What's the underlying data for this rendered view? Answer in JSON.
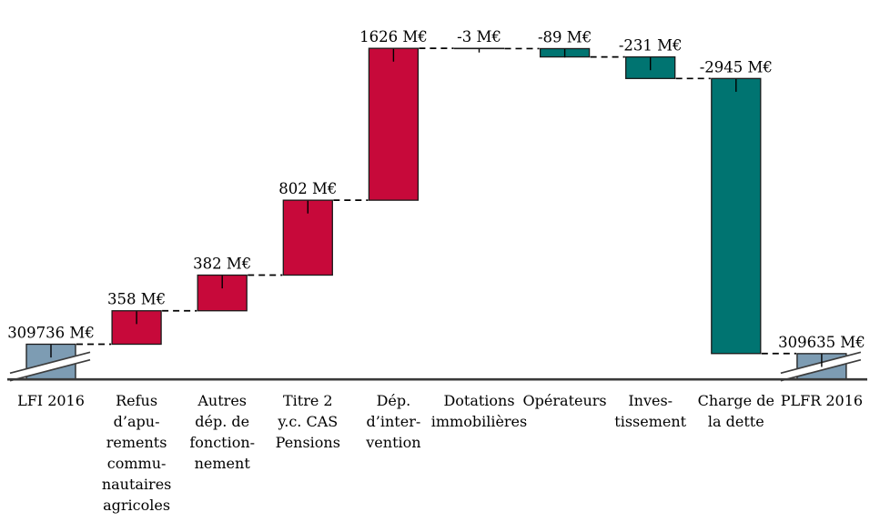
{
  "chart_data": {
    "type": "bar",
    "subtype": "waterfall",
    "title": "",
    "unit": "M€",
    "start_value": 309736,
    "end_value": 309635,
    "grid": false,
    "legend": "none",
    "palette": {
      "increase": "#C7093A",
      "decrease": "#007471",
      "anchor": "#7D9CB3",
      "bar_border": "#1A1A1A",
      "connector": "#000000",
      "axis": "#3A3A3A",
      "break_mark": "#3D3D3D"
    },
    "bars": [
      {
        "name": "lfi-2016",
        "kind": "anchor",
        "value": 309736,
        "value_label": "309736 M€",
        "lines": [
          "LFI 2016"
        ],
        "axis_break": true
      },
      {
        "name": "refus-apurements",
        "kind": "increase",
        "value": 358,
        "value_label": "358 M€",
        "lines": [
          "Refus",
          "d’apu-",
          "rements",
          "commu-",
          "nautaires",
          "agricoles"
        ]
      },
      {
        "name": "autres-dep-fonct",
        "kind": "increase",
        "value": 382,
        "value_label": "382 M€",
        "lines": [
          "Autres",
          "dép. de",
          "fonction-",
          "nement"
        ]
      },
      {
        "name": "titre-2-cas-pensions",
        "kind": "increase",
        "value": 802,
        "value_label": "802 M€",
        "lines": [
          "Titre 2",
          "y.c. CAS",
          "Pensions"
        ]
      },
      {
        "name": "dep-intervention",
        "kind": "increase",
        "value": 1626,
        "value_label": "1626 M€",
        "lines": [
          "Dép.",
          "d’inter-",
          "vention"
        ]
      },
      {
        "name": "dotations-immobilieres",
        "kind": "decrease",
        "value": -3,
        "value_label": "-3 M€",
        "lines": [
          "Dotations",
          "immobilières"
        ]
      },
      {
        "name": "operateurs",
        "kind": "decrease",
        "value": -89,
        "value_label": "-89 M€",
        "lines": [
          "Opérateurs"
        ]
      },
      {
        "name": "investissement",
        "kind": "decrease",
        "value": -231,
        "value_label": "-231 M€",
        "lines": [
          "Inves-",
          "tissement"
        ]
      },
      {
        "name": "charge-de-la-dette",
        "kind": "decrease",
        "value": -2945,
        "value_label": "-2945 M€",
        "lines": [
          "Charge de",
          "la dette"
        ]
      },
      {
        "name": "plfr-2016",
        "kind": "anchor",
        "value": 309635,
        "value_label": "309635 M€",
        "lines": [
          "PLFR 2016"
        ],
        "axis_break": true
      }
    ]
  }
}
